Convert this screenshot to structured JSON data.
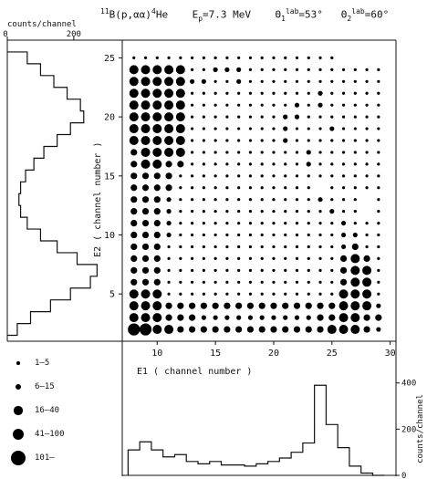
{
  "header": {
    "title_mass_number": "11",
    "title_reaction": "B(p,αα)",
    "title_product_mass": "4",
    "title_product": "He",
    "energy_symbol": "E",
    "energy_sub": "p",
    "energy_text": "=7.3 MeV",
    "theta1_symbol": "Θ",
    "theta1_sup": "lab",
    "theta1_sub": "1",
    "theta1_value": "=53°",
    "theta2_symbol": "Θ",
    "theta2_sup": "lab",
    "theta2_sub": "2",
    "theta2_value": "=60°"
  },
  "legend": [
    {
      "label": "1–5",
      "size_class": 1
    },
    {
      "label": "6–15",
      "size_class": 2
    },
    {
      "label": "16–40",
      "size_class": 3
    },
    {
      "label": "41–100",
      "size_class": 4
    },
    {
      "label": "101–",
      "size_class": 5
    }
  ],
  "chart_data": [
    {
      "type": "scatter",
      "subtype": "coincidence-matrix",
      "xlabel": "E1 ( channel number )",
      "ylabel": "E2 ( channel number )",
      "xlim": [
        7,
        30.5
      ],
      "ylim": [
        1,
        26.5
      ],
      "x_ticks": [
        "10",
        "15",
        "20",
        "25",
        "30"
      ],
      "y_ticks": [
        "5",
        "10",
        "15",
        "20",
        "25"
      ],
      "size_classes": [
        "1–5",
        "6–15",
        "16–40",
        "41–100",
        "101–"
      ],
      "band_notes": "class codes per row, columns E1=8..29 (0 = empty)",
      "rows": {
        "25": "1111111111111111110000",
        "24": "4444411222111111111111",
        "23": "4444422112111111111111",
        "22": "4444411111111111211111",
        "21": "4444411111111121211111",
        "20": "4444411111111221111111",
        "19": "4444411111111211121111",
        "18": "4444411111111211111111",
        "17": "3444411111111112111111",
        "16": "3443311111111112111111",
        "15": "3333111111111111111111",
        "14": "3333111111111111011111",
        "13": "3332111111111111211101",
        "12": "3332111111111111121101",
        "11": "3332111111111111112111",
        "10": "3332111111111111112211",
        "9": "3331111111111111112311",
        "8": "3331111111111111113431",
        "7": "3331111111111111113441",
        "6": "3331111111111111113441",
        "5": "4441111111111111114441",
        "4": "4443333333333333334442",
        "3": "4443332222222222334433",
        "2": "5544333333333333344432"
      }
    },
    {
      "type": "histogram",
      "orientation": "horizontal",
      "title": "counts/channel",
      "x_ticks": [
        "0",
        "200"
      ],
      "xlim": [
        0,
        280
      ],
      "y_axis": "E2 channel",
      "bins": [
        1.5,
        2.5,
        3.5,
        4.5,
        5.5,
        6.5,
        7.5,
        8.5,
        9.5,
        10.5,
        11.5,
        12.5,
        13.5,
        14.5,
        15.5,
        16.5,
        17.5,
        18.5,
        19.5,
        20.5,
        21.5,
        22.5,
        23.5,
        24.5,
        25.5
      ],
      "values": [
        30,
        70,
        130,
        190,
        250,
        270,
        210,
        150,
        100,
        60,
        40,
        35,
        40,
        55,
        80,
        110,
        150,
        190,
        230,
        220,
        180,
        140,
        100,
        60
      ]
    },
    {
      "type": "histogram",
      "orientation": "vertical",
      "ylabel": "counts/channel",
      "y_ticks": [
        "0",
        "200",
        "400"
      ],
      "ylim": [
        0,
        470
      ],
      "x_axis": "E1 channel",
      "bins": [
        7.5,
        8.5,
        9.5,
        10.5,
        11.5,
        12.5,
        13.5,
        14.5,
        15.5,
        16.5,
        17.5,
        18.5,
        19.5,
        20.5,
        21.5,
        22.5,
        23.5,
        24.5,
        25.5,
        26.5,
        27.5,
        28.5,
        29.5
      ],
      "values": [
        110,
        145,
        110,
        80,
        90,
        60,
        50,
        60,
        45,
        45,
        40,
        50,
        60,
        75,
        100,
        140,
        390,
        220,
        120,
        40,
        10,
        0
      ]
    }
  ]
}
